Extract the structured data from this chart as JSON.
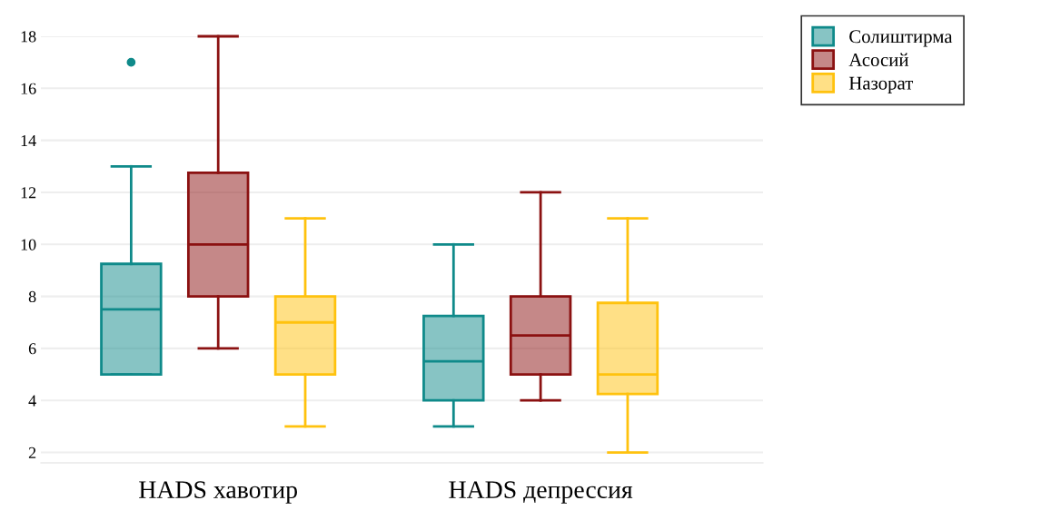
{
  "chart_data": {
    "type": "box",
    "categories": [
      "HADS хавотир",
      "HADS депрессия"
    ],
    "series": [
      {
        "name": "Солиштирма",
        "color": "#0f8a8a",
        "boxes": [
          {
            "low": 5,
            "q1": 5,
            "median": 7.5,
            "q3": 9.25,
            "high": 13,
            "outliers": [
              17
            ]
          },
          {
            "low": 3,
            "q1": 4,
            "median": 5.5,
            "q3": 7.25,
            "high": 10
          }
        ]
      },
      {
        "name": "Асосий",
        "color": "#8b1111",
        "boxes": [
          {
            "low": 6,
            "q1": 8,
            "median": 10,
            "q3": 12.75,
            "high": 18
          },
          {
            "low": 4,
            "q1": 5,
            "median": 6.5,
            "q3": 8,
            "high": 12
          }
        ]
      },
      {
        "name": "Назорат",
        "color": "#ffc20e",
        "boxes": [
          {
            "low": 3,
            "q1": 5,
            "median": 7,
            "q3": 8,
            "high": 11
          },
          {
            "low": 2,
            "q1": 4.25,
            "median": 5,
            "q3": 7.75,
            "high": 11
          }
        ]
      }
    ],
    "ylim": [
      1.6,
      18
    ],
    "yticks": [
      2,
      4,
      6,
      8,
      10,
      12,
      14,
      16,
      18
    ],
    "grid": "y",
    "legend": "top right"
  }
}
